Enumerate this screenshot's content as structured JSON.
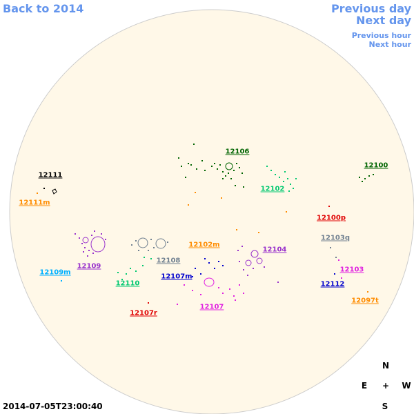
{
  "nav": {
    "back": "Back to 2014",
    "previous_day": "Previous day",
    "next_day": "Next day",
    "previous_hour": "Previous hour",
    "next_hour": "Next hour",
    "link_color": "#6495ed"
  },
  "disk_color": "#fff8e8",
  "regions": [
    {
      "id": "r12111",
      "label": "12111",
      "color": "#000000"
    },
    {
      "id": "r12111m",
      "label": "12111m",
      "color": "#ff8c00"
    },
    {
      "id": "r12106",
      "label": "12106",
      "color": "#006400"
    },
    {
      "id": "r12102",
      "label": "12102",
      "color": "#00c870"
    },
    {
      "id": "r12100",
      "label": "12100",
      "color": "#006400"
    },
    {
      "id": "r12100p",
      "label": "12100p",
      "color": "#e00000"
    },
    {
      "id": "r12103q",
      "label": "12103q",
      "color": "#708090"
    },
    {
      "id": "r12102m",
      "label": "12102m",
      "color": "#ff8c00"
    },
    {
      "id": "r12104",
      "label": "12104",
      "color": "#9932cc"
    },
    {
      "id": "r12109",
      "label": "12109",
      "color": "#9932cc"
    },
    {
      "id": "r12108",
      "label": "12108",
      "color": "#708090"
    },
    {
      "id": "r12109m",
      "label": "12109m",
      "color": "#00b0ff"
    },
    {
      "id": "r12110",
      "label": "12110",
      "color": "#00c870"
    },
    {
      "id": "r12107m",
      "label": "12107m",
      "color": "#0000cd"
    },
    {
      "id": "r12103",
      "label": "12103",
      "color": "#e020e0"
    },
    {
      "id": "r12112",
      "label": "12112",
      "color": "#0000cd"
    },
    {
      "id": "r12107",
      "label": "12107",
      "color": "#e020e0"
    },
    {
      "id": "r12107r",
      "label": "12107r",
      "color": "#e00000"
    },
    {
      "id": "r12097t",
      "label": "12097t",
      "color": "#ff8c00"
    }
  ],
  "timestamp": "2014-07-05T23:00:40",
  "compass": {
    "n": "N",
    "e": "E",
    "w": "W",
    "s": "S",
    "center": "+"
  }
}
